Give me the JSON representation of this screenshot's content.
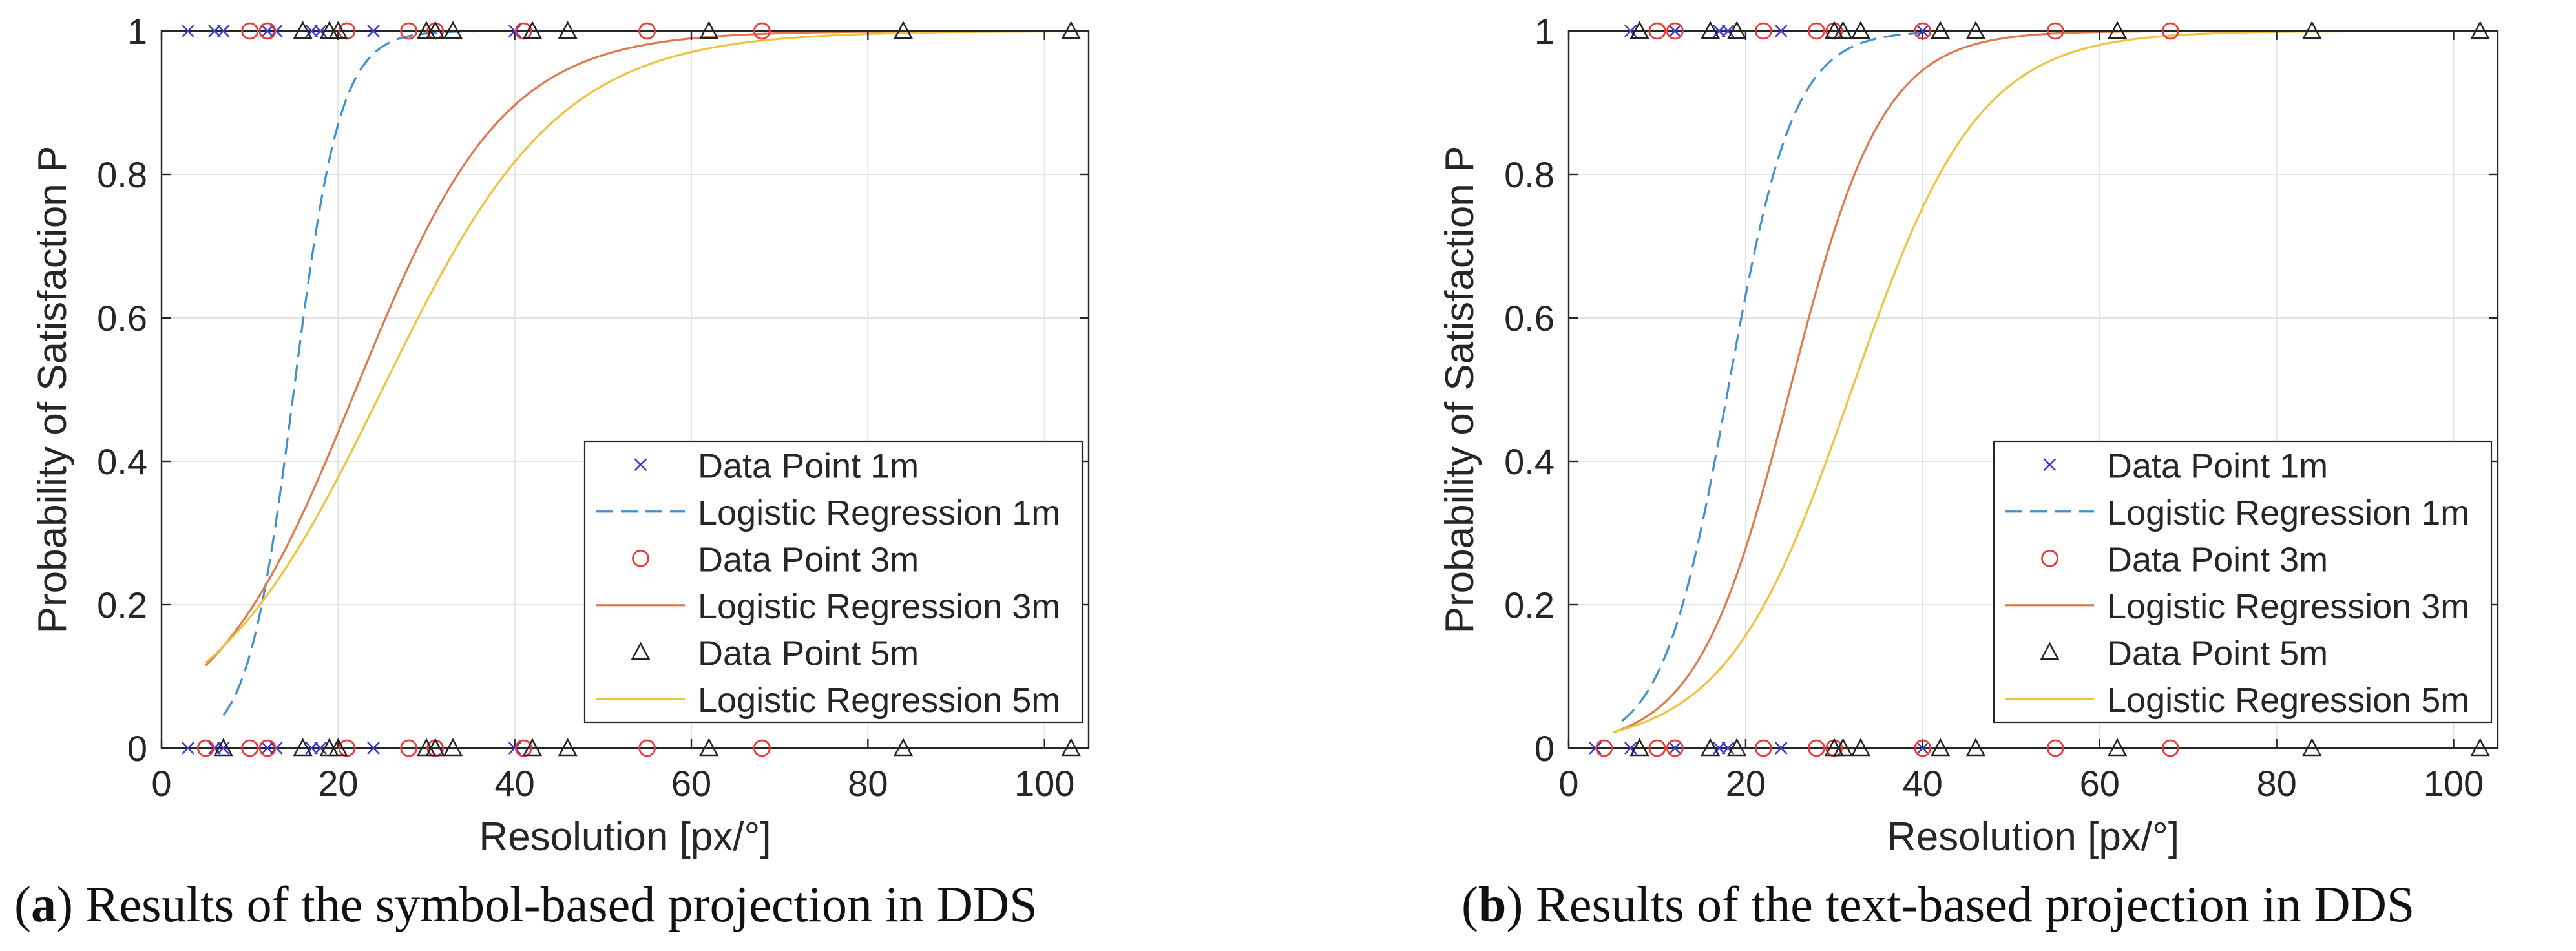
{
  "chart_data": [
    {
      "type": "scatter",
      "panel_id": "a",
      "xlabel": "Resolution [px/°]",
      "ylabel": "Probability of Satisfaction P",
      "xlim": [
        0,
        105
      ],
      "ylim": [
        0,
        1
      ],
      "xticks": [
        0,
        20,
        40,
        60,
        80,
        100
      ],
      "yticks": [
        0,
        0.2,
        0.4,
        0.6,
        0.8,
        1
      ],
      "xtick_labels": [
        "0",
        "20",
        "40",
        "60",
        "80",
        "100"
      ],
      "ytick_labels": [
        "0",
        "0.2",
        "0.4",
        "0.6",
        "0.8",
        "1"
      ],
      "grid": true,
      "legend_position": "bottom-right",
      "series": [
        {
          "name": "Data Point 1m",
          "kind": "points",
          "marker": "x",
          "color": "#3a3ad8",
          "x_at_1": [
            3,
            6,
            7,
            12,
            13,
            17,
            18,
            24,
            40
          ],
          "x_at_0": [
            3,
            6,
            7,
            12,
            13,
            17,
            18,
            24,
            40
          ]
        },
        {
          "name": "Logistic Regression 1m",
          "kind": "curve",
          "style": "dashed",
          "color": "#3f90cf",
          "x50": 15,
          "k": 0.38,
          "x_range": [
            7,
            42
          ]
        },
        {
          "name": "Data Point 3m",
          "kind": "points",
          "marker": "o",
          "color": "#ef3838",
          "x_at_1": [
            10,
            12,
            21,
            28,
            31,
            41,
            55,
            68
          ],
          "x_at_0": [
            5,
            10,
            12,
            21,
            28,
            31,
            41,
            55,
            68
          ]
        },
        {
          "name": "Logistic Regression 3m",
          "kind": "curve",
          "style": "solid",
          "color": "#de7a4e",
          "x50": 22,
          "k": 0.12,
          "x_range": [
            5,
            103
          ]
        },
        {
          "name": "Data Point 5m",
          "kind": "points",
          "marker": "triangle",
          "color": "#222222",
          "x_at_1": [
            16,
            19,
            20,
            30,
            31,
            33,
            42,
            46,
            62,
            84,
            103
          ],
          "x_at_0": [
            7,
            16,
            19,
            20,
            30,
            31,
            33,
            42,
            46,
            62,
            84,
            103
          ]
        },
        {
          "name": "Logistic Regression 5m",
          "kind": "curve",
          "style": "solid",
          "color": "#edc33f",
          "x50": 25,
          "k": 0.1,
          "x_range": [
            5,
            103
          ]
        }
      ]
    },
    {
      "type": "scatter",
      "panel_id": "b",
      "xlabel": "Resolution [px/°]",
      "ylabel": "Probability of Satisfaction P",
      "xlim": [
        0,
        105
      ],
      "ylim": [
        0,
        1
      ],
      "xticks": [
        0,
        20,
        40,
        60,
        80,
        100
      ],
      "yticks": [
        0,
        0.2,
        0.4,
        0.6,
        0.8,
        1
      ],
      "xtick_labels": [
        "0",
        "20",
        "40",
        "60",
        "80",
        "100"
      ],
      "ytick_labels": [
        "0",
        "0.2",
        "0.4",
        "0.6",
        "0.8",
        "1"
      ],
      "grid": true,
      "legend_position": "bottom-right",
      "series": [
        {
          "name": "Data Point 1m",
          "kind": "points",
          "marker": "x",
          "color": "#3a3ad8",
          "x_at_1": [
            7,
            12,
            17,
            18,
            24,
            40
          ],
          "x_at_0": [
            3,
            7,
            12,
            17,
            18,
            24,
            40
          ]
        },
        {
          "name": "Logistic Regression 1m",
          "kind": "curve",
          "style": "dashed",
          "color": "#3f90cf",
          "x50": 18,
          "k": 0.27,
          "x_range": [
            6,
            40
          ]
        },
        {
          "name": "Data Point 3m",
          "kind": "points",
          "marker": "o",
          "color": "#ef3838",
          "x_at_1": [
            10,
            12,
            22,
            28,
            30,
            40,
            55,
            68
          ],
          "x_at_0": [
            4,
            10,
            12,
            22,
            28,
            30,
            40,
            55,
            68
          ]
        },
        {
          "name": "Logistic Regression 3m",
          "kind": "curve",
          "style": "solid",
          "color": "#de7a4e",
          "x50": 25,
          "k": 0.19,
          "x_range": [
            5,
            70
          ]
        },
        {
          "name": "Data Point 5m",
          "kind": "points",
          "marker": "triangle",
          "color": "#222222",
          "x_at_1": [
            8,
            16,
            19,
            30,
            31,
            33,
            42,
            46,
            62,
            84,
            103
          ],
          "x_at_0": [
            8,
            16,
            19,
            30,
            31,
            33,
            42,
            46,
            62,
            84,
            103
          ]
        },
        {
          "name": "Logistic Regression 5m",
          "kind": "curve",
          "style": "solid",
          "color": "#edc33f",
          "x50": 32,
          "k": 0.14,
          "x_range": [
            5,
            103
          ]
        }
      ]
    }
  ],
  "captions": [
    {
      "letter": "a",
      "text": " Results of the symbol-based projection in DDS"
    },
    {
      "letter": "b",
      "text": " Results of the text-based projection in DDS"
    }
  ]
}
